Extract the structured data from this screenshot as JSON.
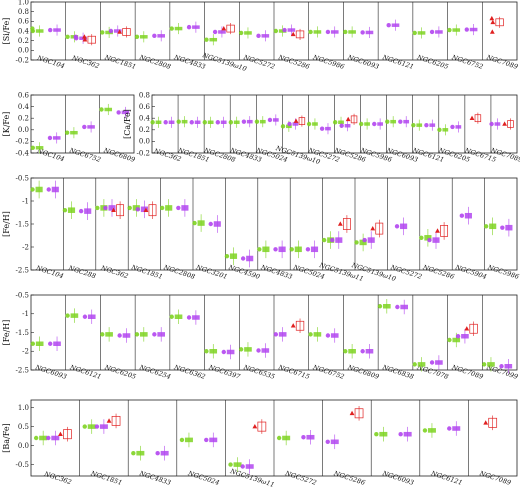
{
  "colors": {
    "green": "#7ed321",
    "purple": "#b245f0",
    "red": "#e02020",
    "frame": "#222222"
  },
  "chart_data": [
    {
      "type": "scatter",
      "ylabel": "[Si/Fe]",
      "ylim": [
        -0.2,
        1.0
      ],
      "yticks": [
        "-0.2",
        "0.0",
        "0.2",
        "0.4",
        "0.6",
        "0.8",
        "1.0"
      ],
      "categories": [
        "NGC104",
        "NGC362",
        "NGC1851",
        "NGC2808",
        "NGC4833",
        "NGC5139ω10",
        "NGC5272",
        "NGC5286",
        "NGC5986",
        "NGC6093",
        "NGC6121",
        "NGC6205",
        "NGC6752",
        "NGC7089"
      ],
      "groups": [
        {
          "g": [
            0.4,
            0.45
          ],
          "p": [
            0.42
          ]
        },
        {
          "g": [
            0.28
          ],
          "p": [
            0.25,
            0.28
          ],
          "r": [
            0.22,
            0.28
          ]
        },
        {
          "g": [
            0.37
          ],
          "p": [
            0.4
          ],
          "r": [
            0.38
          ]
        },
        {
          "g": [
            0.28
          ],
          "p": [
            0.3
          ]
        },
        {
          "g": [
            0.45
          ],
          "p": [
            0.48
          ]
        },
        {
          "g": [
            0.22
          ],
          "p": [
            0.38
          ],
          "r": [
            0.45
          ]
        },
        {
          "g": [
            0.36
          ],
          "p": [
            0.3
          ]
        },
        {
          "g": [
            0.4
          ],
          "p": [
            0.42
          ],
          "r": [
            0.33
          ]
        },
        {
          "g": [
            0.38
          ],
          "p": [
            0.38
          ]
        },
        {
          "g": [
            0.38
          ],
          "p": [
            0.37
          ]
        },
        {
          "g": [],
          "p": [
            0.52
          ]
        },
        {
          "g": [
            0.36
          ],
          "p": [
            0.38
          ]
        },
        {
          "g": [
            0.42
          ],
          "p": [
            0.43
          ]
        },
        {
          "g": [],
          "p": [],
          "r": [
            0.58,
            0.38,
            0.66
          ]
        }
      ]
    },
    {
      "type": "scatter",
      "ylabel": "[K/Fe]",
      "ylim": [
        -0.4,
        0.6
      ],
      "yticks": [
        "-0.4",
        "-0.2",
        "0.0",
        "0.2",
        "0.4",
        "0.6"
      ],
      "categories": [
        "NGC104",
        "NGC6752",
        "NGC6809"
      ],
      "groups": [
        {
          "g": [
            -0.31
          ],
          "p": [
            -0.14
          ]
        },
        {
          "g": [
            -0.05
          ],
          "p": [
            0.05
          ]
        },
        {
          "g": [
            0.35
          ],
          "p": [
            0.3
          ]
        }
      ]
    },
    {
      "type": "scatter",
      "ylabel": "[Ca/Fe]",
      "ylim": [
        -0.2,
        0.8
      ],
      "yticks": [
        "-0.2",
        "0.0",
        "0.2",
        "0.4",
        "0.6",
        "0.8"
      ],
      "categories": [
        "NGC362",
        "NGC1851",
        "NGC2808",
        "NGC4833",
        "NGC5024",
        "NGC5139ω10",
        "NGC5272",
        "NGC5286",
        "NGC5986",
        "NGC6093",
        "NGC6121",
        "NGC6205",
        "NGC6715",
        "NGC7089"
      ],
      "groups": [
        {
          "g": [
            0.33
          ],
          "p": [
            0.33
          ]
        },
        {
          "g": [
            0.34
          ],
          "p": [
            0.33
          ]
        },
        {
          "g": [
            0.33
          ],
          "p": [
            0.33
          ]
        },
        {
          "g": [
            0.33
          ],
          "p": [
            0.34
          ]
        },
        {
          "g": [
            0.34
          ],
          "p": [
            0.37
          ]
        },
        {
          "g": [
            0.26
          ],
          "p": [
            0.3
          ],
          "r": [
            0.35
          ]
        },
        {
          "g": [
            0.3
          ],
          "p": [
            0.22
          ]
        },
        {
          "g": [
            0.33
          ],
          "p": [
            0.27
          ],
          "r": [
            0.38
          ]
        },
        {
          "g": [
            0.3
          ],
          "p": [
            0.3
          ]
        },
        {
          "g": [
            0.34
          ],
          "p": [
            0.34
          ]
        },
        {
          "g": [
            0.28
          ],
          "p": [
            0.28
          ]
        },
        {
          "g": [
            0.2
          ],
          "p": [
            0.25
          ]
        },
        {
          "g": [],
          "p": [],
          "r": [
            0.4
          ]
        },
        {
          "g": [],
          "p": [
            0.3
          ],
          "r": [
            0.3
          ]
        }
      ]
    },
    {
      "type": "scatter",
      "ylabel": "[Fe/H]",
      "ylim": [
        -2.5,
        -0.5
      ],
      "yticks": [
        "-2.5",
        "-2",
        "-1.5",
        "-1",
        "-0.5"
      ],
      "categories": [
        "NGC104",
        "NGC288",
        "NGC362",
        "NGC1851",
        "NGC2808",
        "NGC3201",
        "NGC4590",
        "NGC4833",
        "NGC5024",
        "NGC5139ω11",
        "NGC5139ω10",
        "NGC5272",
        "NGC5286",
        "NGC5904",
        "NGC5986"
      ],
      "groups": [
        {
          "g": [
            -0.75
          ],
          "p": [
            -0.75
          ]
        },
        {
          "g": [
            -1.2
          ],
          "p": [
            -1.22
          ]
        },
        {
          "g": [
            -1.15
          ],
          "p": [
            -1.15
          ],
          "r": [
            -1.2
          ]
        },
        {
          "g": [
            -1.15
          ],
          "p": [
            -1.18
          ],
          "r": [
            -1.2
          ]
        },
        {
          "g": [
            -1.15
          ],
          "p": [
            -1.15
          ]
        },
        {
          "g": [
            -1.48
          ],
          "p": [
            -1.5
          ]
        },
        {
          "g": [
            -2.2
          ],
          "p": [
            -2.25
          ]
        },
        {
          "g": [
            -2.05
          ],
          "p": [
            -2.05
          ]
        },
        {
          "g": [
            -2.05
          ],
          "p": [
            -2.05
          ]
        },
        {
          "g": [
            -1.85
          ],
          "p": [
            -1.85
          ],
          "r": [
            -1.5
          ]
        },
        {
          "g": [
            -1.9
          ],
          "p": [
            -1.85
          ],
          "r": [
            -1.6
          ]
        },
        {
          "g": [],
          "p": [
            -1.55
          ]
        },
        {
          "g": [
            -1.8
          ],
          "p": [
            -1.85
          ],
          "r": [
            -1.65
          ]
        },
        {
          "g": [],
          "p": [
            -1.32
          ]
        },
        {
          "g": [
            -1.55
          ],
          "p": [
            -1.58
          ]
        }
      ]
    },
    {
      "type": "scatter",
      "ylabel": "[Fe/H]",
      "ylim": [
        -2.5,
        -0.5
      ],
      "yticks": [
        "-2.5",
        "-2",
        "-1.5",
        "-1",
        "-0.5"
      ],
      "categories": [
        "NGC6093",
        "NGC6121",
        "NGC6205",
        "NGC6254",
        "NGC6362",
        "NGC6397",
        "NGC6535",
        "NGC6715",
        "NGC6752",
        "NGC6809",
        "NGC6838",
        "NGC7078",
        "NGC7089",
        "NGC7099"
      ],
      "groups": [
        {
          "g": [
            -1.8
          ],
          "p": [
            -1.8
          ]
        },
        {
          "g": [
            -1.05
          ],
          "p": [
            -1.08
          ]
        },
        {
          "g": [
            -1.55
          ],
          "p": [
            -1.58
          ]
        },
        {
          "g": [
            -1.55
          ],
          "p": [
            -1.55
          ]
        },
        {
          "g": [
            -1.08
          ],
          "p": [
            -1.1
          ]
        },
        {
          "g": [
            -2.0
          ],
          "p": [
            -2.02
          ]
        },
        {
          "g": [
            -1.95
          ],
          "p": [
            -1.98
          ]
        },
        {
          "g": [],
          "p": [
            -1.55
          ],
          "r": [
            -1.32
          ]
        },
        {
          "g": [
            -1.55
          ],
          "p": [
            -1.58
          ]
        },
        {
          "g": [
            -2.0
          ],
          "p": [
            -2.0
          ]
        },
        {
          "g": [
            -0.8
          ],
          "p": [
            -0.82
          ]
        },
        {
          "g": [
            -2.35
          ],
          "p": [
            -2.3
          ]
        },
        {
          "g": [
            -1.7
          ],
          "p": [
            -1.6
          ],
          "r": [
            -1.4
          ]
        },
        {
          "g": [
            -2.35
          ],
          "p": [
            -2.4
          ]
        }
      ]
    },
    {
      "type": "scatter",
      "ylabel": "[Ba/Fe]",
      "ylim": [
        -0.8,
        1.2
      ],
      "yticks": [
        "-0.5",
        "0.0",
        "0.5",
        "1.0"
      ],
      "categories": [
        "NGC362",
        "NGC1851",
        "NGC4833",
        "NGC5024",
        "NGC5139ω11",
        "NGC5272",
        "NGC5286",
        "NGC6093",
        "NGC6121",
        "NGC7089"
      ],
      "groups": [
        {
          "g": [
            0.2
          ],
          "p": [
            0.2
          ],
          "r": [
            0.3
          ]
        },
        {
          "g": [
            0.5
          ],
          "p": [
            0.5
          ],
          "r": [
            0.65
          ]
        },
        {
          "g": [
            -0.2
          ],
          "p": [
            -0.2
          ]
        },
        {
          "g": [
            0.15
          ],
          "p": [
            0.15
          ]
        },
        {
          "g": [
            -0.5
          ],
          "p": [
            -0.55
          ],
          "r": [
            0.5
          ]
        },
        {
          "g": [
            0.2
          ],
          "p": [
            0.22
          ]
        },
        {
          "g": [],
          "p": [
            0.1
          ],
          "r": [
            0.85
          ]
        },
        {
          "g": [
            0.3
          ],
          "p": [
            0.3
          ]
        },
        {
          "g": [
            0.4
          ],
          "p": [
            0.45
          ]
        },
        {
          "g": [],
          "p": [],
          "r": [
            0.6
          ]
        }
      ]
    }
  ]
}
